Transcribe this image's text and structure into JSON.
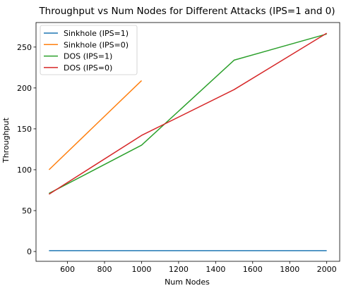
{
  "chart_data": {
    "type": "line",
    "title": "Throughput vs Num Nodes for Different Attacks (IPS=1 and 0)",
    "xlabel": "Num Nodes",
    "ylabel": "Throughput",
    "xlim": [
      430,
      2070
    ],
    "ylim": [
      -12,
      280
    ],
    "xticks": [
      600,
      800,
      1000,
      1200,
      1400,
      1600,
      1800,
      2000
    ],
    "yticks": [
      0,
      50,
      100,
      150,
      200,
      250
    ],
    "grid": false,
    "legend_position": "top-left",
    "series": [
      {
        "name": "Sinkhole (IPS=1)",
        "color": "#1f77b4",
        "x": [
          500,
          1000,
          1500,
          2000
        ],
        "y": [
          1,
          1,
          1,
          1
        ]
      },
      {
        "name": "Sinkhole (IPS=0)",
        "color": "#ff7f0e",
        "x": [
          500,
          1000
        ],
        "y": [
          100,
          209
        ]
      },
      {
        "name": "DOS (IPS=1)",
        "color": "#2ca02c",
        "x": [
          500,
          1000,
          1500,
          2000
        ],
        "y": [
          71,
          130,
          234,
          266
        ]
      },
      {
        "name": "DOS (IPS=0)",
        "color": "#d62728",
        "x": [
          500,
          1000,
          1500,
          2000
        ],
        "y": [
          70,
          142,
          198,
          267
        ]
      }
    ]
  }
}
